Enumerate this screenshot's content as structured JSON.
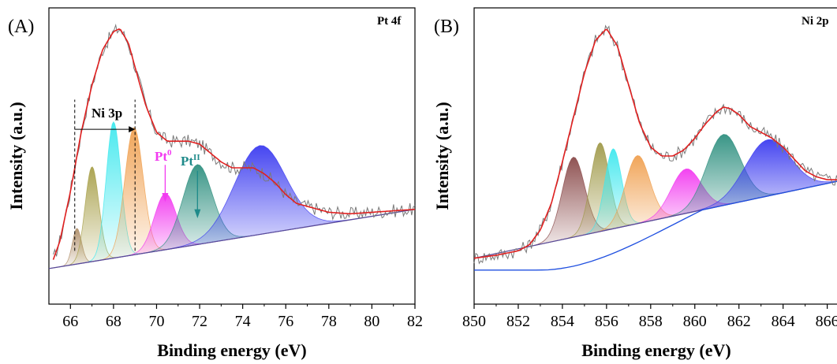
{
  "chart_data": [
    {
      "type": "line",
      "panel_label": "(A)",
      "title": "Pt 4f",
      "xlabel": "Binding energy (eV)",
      "ylabel": "Intensity (a.u.)",
      "xlim": [
        65,
        82
      ],
      "ylim": [
        0,
        1
      ],
      "xticks": [
        66,
        68,
        70,
        72,
        74,
        76,
        78,
        80,
        82
      ],
      "grid": false,
      "background": {
        "x0": 65.0,
        "y0": 0.12,
        "x1": 82.0,
        "y1": 0.32
      },
      "envelope": {
        "color": "#e02020",
        "x": [
          65.2,
          65.5,
          66.0,
          66.5,
          67.0,
          67.5,
          68.0,
          68.3,
          68.7,
          69.0,
          69.5,
          70.0,
          70.5,
          71.0,
          71.5,
          72.0,
          72.5,
          73.0,
          73.5,
          74.0,
          74.5,
          75.0,
          75.5,
          76.0,
          76.5,
          77.0,
          77.5,
          78.0,
          79.0,
          80.0,
          81.0,
          82.0
        ],
        "y": [
          0.15,
          0.21,
          0.38,
          0.58,
          0.74,
          0.86,
          0.92,
          0.93,
          0.88,
          0.8,
          0.67,
          0.58,
          0.55,
          0.55,
          0.55,
          0.54,
          0.51,
          0.48,
          0.46,
          0.46,
          0.46,
          0.44,
          0.41,
          0.37,
          0.34,
          0.33,
          0.32,
          0.31,
          0.305,
          0.31,
          0.315,
          0.32
        ]
      },
      "peaks": [
        {
          "name": "",
          "center": 66.3,
          "fwhm": 0.5,
          "height": 0.12,
          "color": "#b08f6a"
        },
        {
          "name": "",
          "center": 67.0,
          "fwhm": 0.75,
          "height": 0.32,
          "color": "#a8a04a"
        },
        {
          "name": "",
          "center": 68.0,
          "fwhm": 0.8,
          "height": 0.46,
          "color": "#3fe8ee"
        },
        {
          "name": "",
          "center": 68.95,
          "fwhm": 1.0,
          "height": 0.43,
          "color": "#f0a050"
        },
        {
          "name": "",
          "center": 70.4,
          "fwhm": 1.2,
          "height": 0.19,
          "color": "#f23af0"
        },
        {
          "name": "",
          "center": 71.9,
          "fwhm": 1.6,
          "height": 0.27,
          "color": "#2f9080"
        },
        {
          "name": "",
          "center": 74.8,
          "fwhm": 2.8,
          "height": 0.3,
          "color": "#3c3cf0"
        }
      ],
      "annotations": {
        "ni3p": "Ni 3p",
        "pt0_base": "Pt",
        "pt0_sup": "0",
        "pt0_color": "#f23af0",
        "pt2_base": "Pt",
        "pt2_sup": "II",
        "pt2_color": "#1f8a8a",
        "dashed_lines_x": [
          66.2,
          69.0
        ]
      }
    },
    {
      "type": "line",
      "panel_label": "(B)",
      "title": "Ni 2p",
      "xlabel": "Binding energy (eV)",
      "ylabel": "Intensity (a.u.)",
      "xlim": [
        850,
        866.8
      ],
      "ylim": [
        0,
        1
      ],
      "xticks": [
        850,
        852,
        854,
        856,
        858,
        860,
        862,
        864,
        866
      ],
      "grid": false,
      "background": {
        "x0": 850.0,
        "y0": 0.155,
        "x1": 866.8,
        "y1": 0.42
      },
      "envelope": {
        "color": "#e02020",
        "x": [
          850.0,
          851.0,
          852.0,
          852.5,
          853.0,
          853.5,
          854.0,
          854.5,
          855.0,
          855.5,
          856.0,
          856.5,
          857.0,
          857.5,
          858.0,
          858.5,
          859.0,
          859.5,
          860.0,
          860.5,
          861.0,
          861.3,
          861.6,
          862.0,
          862.5,
          863.0,
          863.5,
          864.0,
          864.5,
          865.0,
          865.5,
          866.0,
          866.8
        ],
        "y": [
          0.155,
          0.165,
          0.18,
          0.2,
          0.25,
          0.34,
          0.48,
          0.63,
          0.78,
          0.89,
          0.93,
          0.87,
          0.74,
          0.61,
          0.53,
          0.5,
          0.5,
          0.52,
          0.56,
          0.61,
          0.65,
          0.665,
          0.66,
          0.64,
          0.6,
          0.58,
          0.56,
          0.53,
          0.49,
          0.45,
          0.43,
          0.42,
          0.42
        ]
      },
      "peaks": [
        {
          "name": "",
          "center": 854.5,
          "fwhm": 1.2,
          "height": 0.27,
          "color": "#8a4a4a"
        },
        {
          "name": "",
          "center": 855.7,
          "fwhm": 1.0,
          "height": 0.3,
          "color": "#a09a4a"
        },
        {
          "name": "",
          "center": 856.3,
          "fwhm": 0.9,
          "height": 0.27,
          "color": "#3fe8ee"
        },
        {
          "name": "",
          "center": 857.4,
          "fwhm": 1.3,
          "height": 0.23,
          "color": "#f0a050"
        },
        {
          "name": "",
          "center": 859.6,
          "fwhm": 1.6,
          "height": 0.15,
          "color": "#f23af0"
        },
        {
          "name": "",
          "center": 861.3,
          "fwhm": 1.8,
          "height": 0.24,
          "color": "#2f9080"
        },
        {
          "name": "",
          "center": 863.3,
          "fwhm": 2.4,
          "height": 0.19,
          "color": "#3c3cf0"
        }
      ]
    }
  ]
}
